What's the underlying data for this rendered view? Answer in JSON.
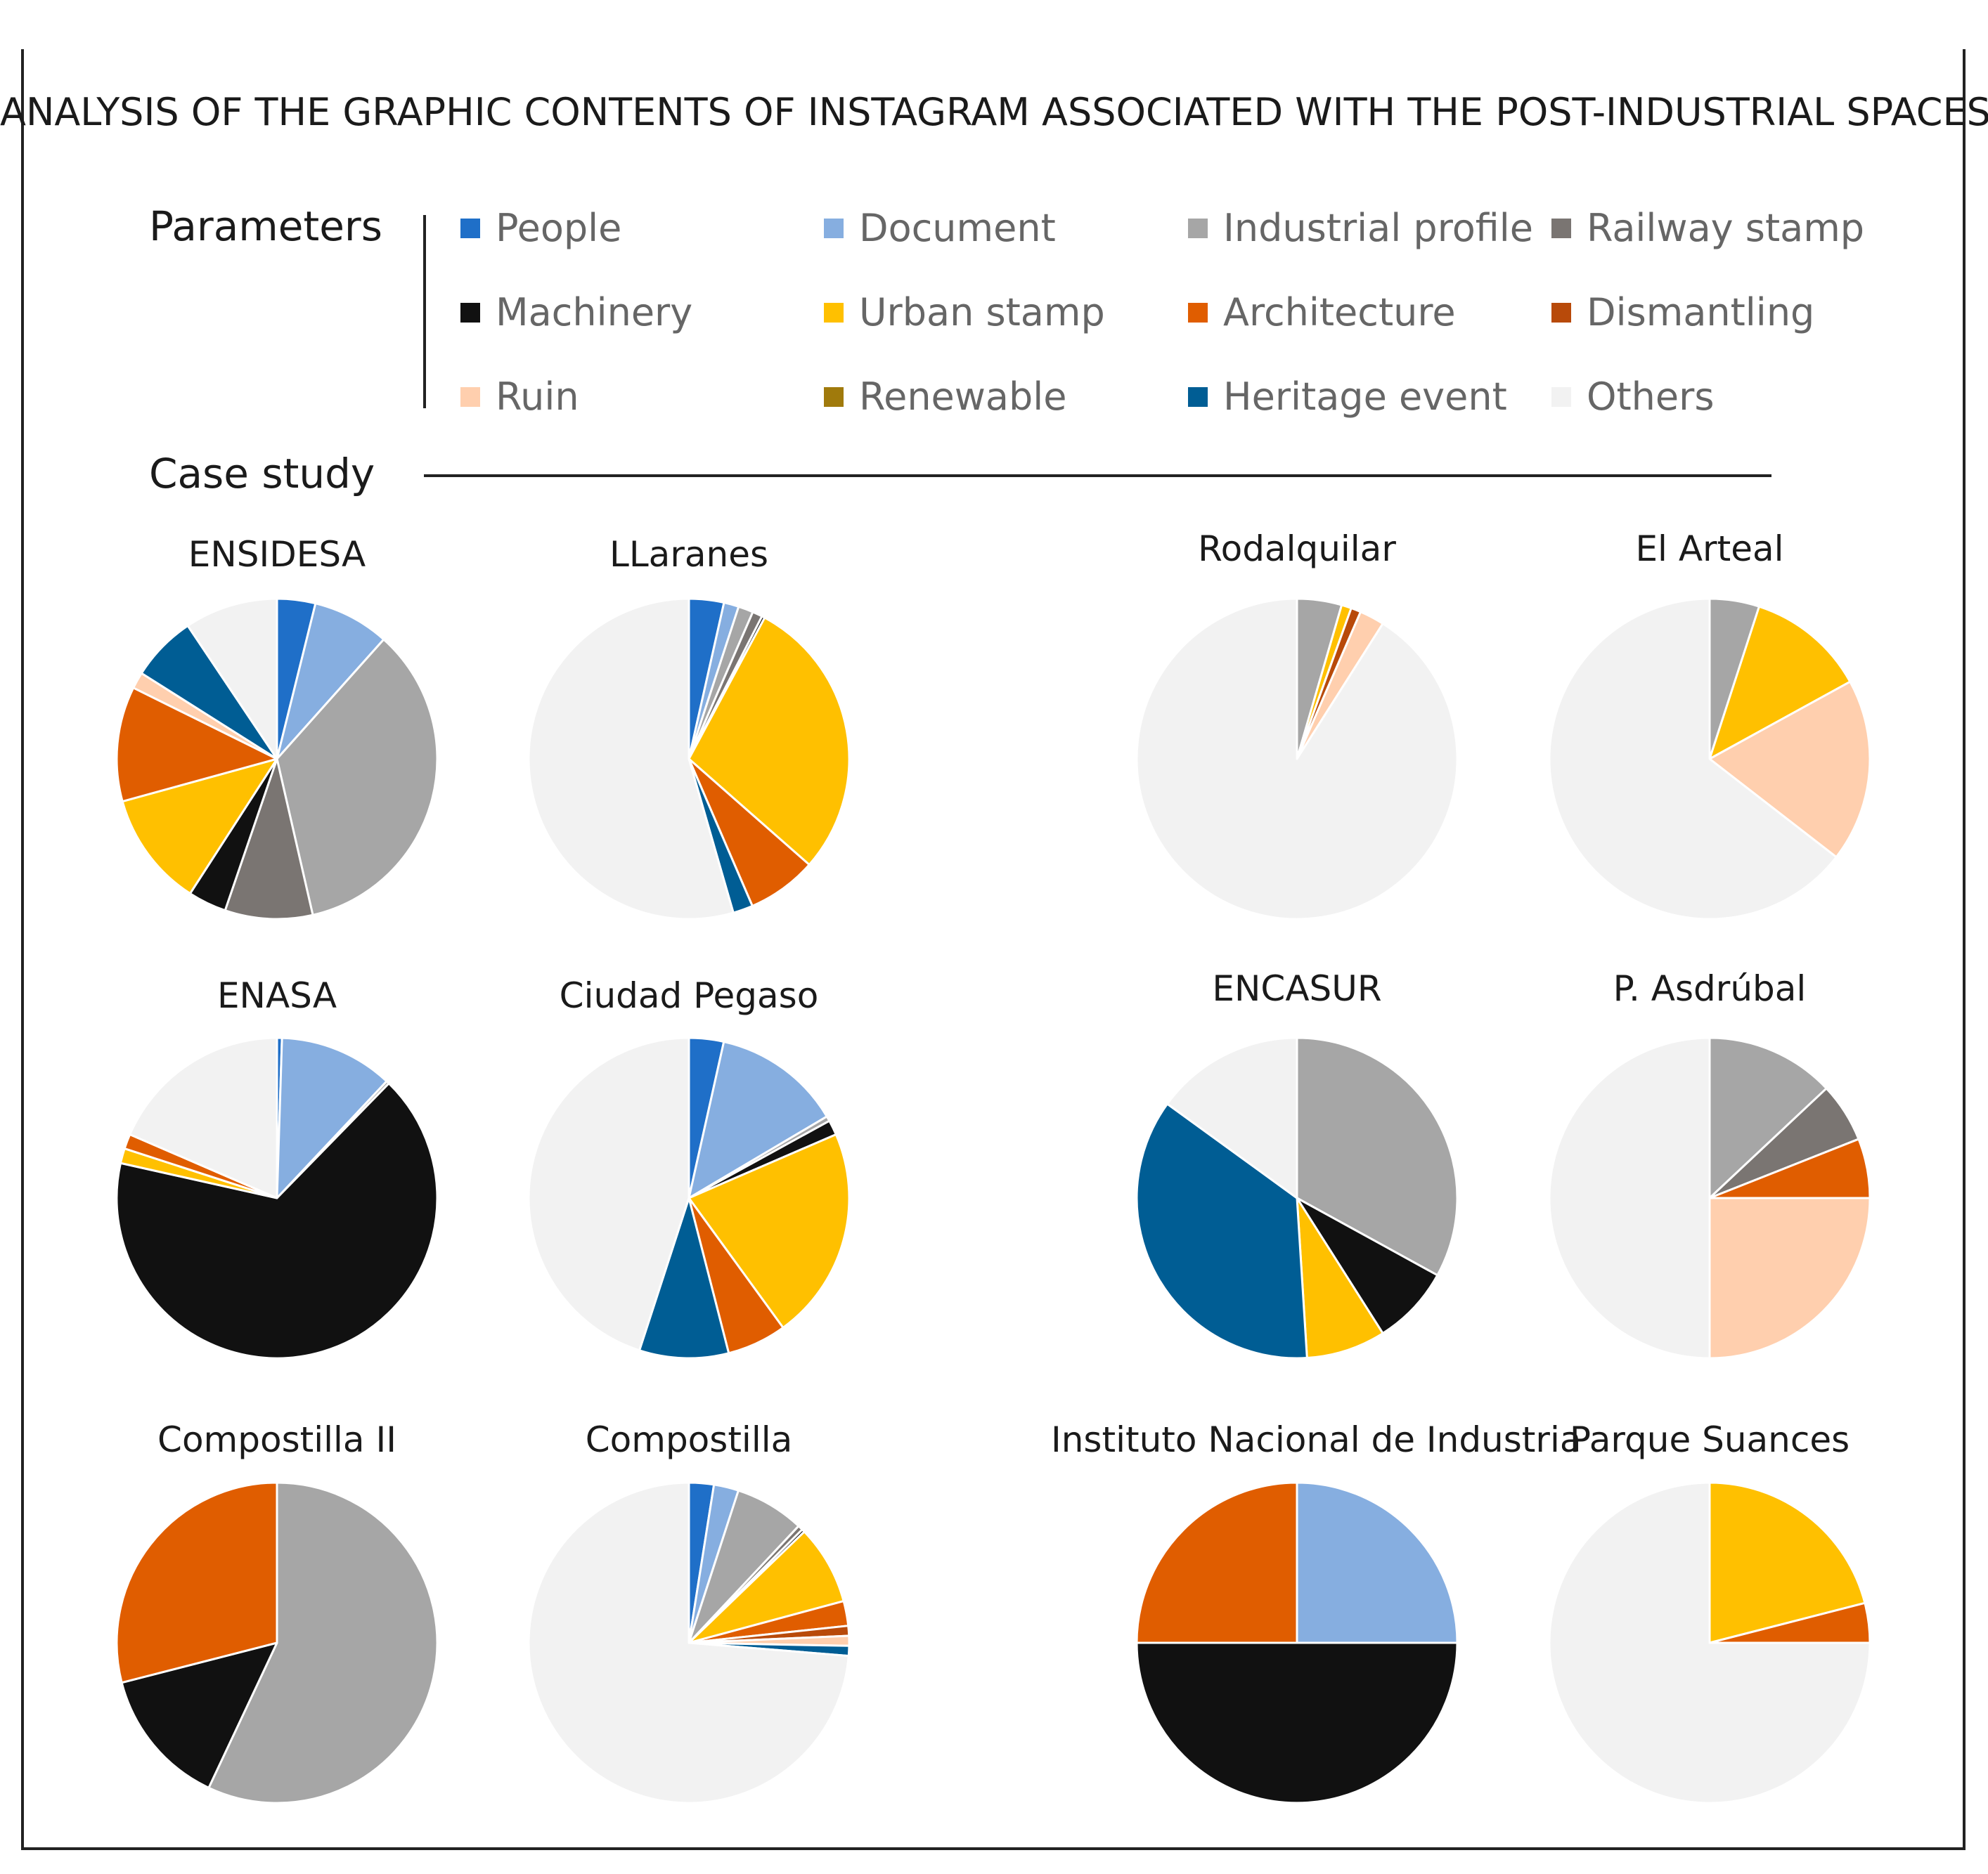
{
  "title": "ANALYSIS OF THE GRAPHIC CONTENTS OF INSTAGRAM ASSOCIATED WITH THE POST-INDUSTRIAL SPACES",
  "parameters_label": "Parameters",
  "case_study_label": "Case study",
  "legend": [
    {
      "name": "People",
      "color": "#1f6fc8"
    },
    {
      "name": "Document",
      "color": "#86aee0"
    },
    {
      "name": "Industrial profile",
      "color": "#a6a6a6"
    },
    {
      "name": "Railway stamp",
      "color": "#7a7572"
    },
    {
      "name": "Machinery",
      "color": "#111111"
    },
    {
      "name": "Urban stamp",
      "color": "#ffc000"
    },
    {
      "name": "Architecture",
      "color": "#e05d00"
    },
    {
      "name": "Dismantling",
      "color": "#b84a0a"
    },
    {
      "name": "Ruin",
      "color": "#ffcfae"
    },
    {
      "name": "Renewable",
      "color": "#a07a0c"
    },
    {
      "name": "Heritage event",
      "color": "#005d94"
    },
    {
      "name": "Others",
      "color": "#f2f2f2"
    }
  ],
  "chart_data": [
    {
      "type": "pie",
      "title": "ENSIDESA",
      "labels": [
        "People",
        "Document",
        "Industrial profile",
        "Railway stamp",
        "Machinery",
        "Urban stamp",
        "Architecture",
        "Dismantling",
        "Ruin",
        "Renewable",
        "Heritage event",
        "Others"
      ],
      "values": [
        3.5,
        7,
        31.5,
        8,
        3.5,
        10.5,
        10.5,
        0,
        1.5,
        0,
        6,
        8.5
      ]
    },
    {
      "type": "pie",
      "title": "LLaranes",
      "labels": [
        "People",
        "Document",
        "Industrial profile",
        "Railway stamp",
        "Machinery",
        "Urban stamp",
        "Architecture",
        "Dismantling",
        "Ruin",
        "Renewable",
        "Heritage event",
        "Others"
      ],
      "values": [
        3.5,
        1.5,
        1.5,
        1,
        0.3,
        28.5,
        7,
        0,
        0,
        0,
        2,
        54.2
      ]
    },
    {
      "type": "pie",
      "title": "Rodalquilar",
      "labels": [
        "People",
        "Document",
        "Industrial profile",
        "Railway stamp",
        "Machinery",
        "Urban stamp",
        "Architecture",
        "Dismantling",
        "Ruin",
        "Renewable",
        "Heritage event",
        "Others"
      ],
      "values": [
        0,
        0,
        4.5,
        0,
        0,
        1,
        0,
        1,
        2.5,
        0,
        0,
        91
      ]
    },
    {
      "type": "pie",
      "title": "El Arteal",
      "labels": [
        "People",
        "Document",
        "Industrial profile",
        "Railway stamp",
        "Machinery",
        "Urban stamp",
        "Architecture",
        "Dismantling",
        "Ruin",
        "Renewable",
        "Heritage event",
        "Others"
      ],
      "values": [
        0,
        0,
        5,
        0,
        0,
        12,
        0,
        0,
        18.5,
        0,
        0,
        64.5
      ]
    },
    {
      "type": "pie",
      "title": "ENASA",
      "labels": [
        "People",
        "Document",
        "Industrial profile",
        "Railway stamp",
        "Machinery",
        "Urban stamp",
        "Architecture",
        "Dismantling",
        "Ruin",
        "Renewable",
        "Heritage event",
        "Others"
      ],
      "values": [
        0.5,
        11.5,
        0.3,
        0,
        66.2,
        1.5,
        1.5,
        0,
        0,
        0,
        0,
        18.5
      ]
    },
    {
      "type": "pie",
      "title": "Ciudad Pegaso",
      "labels": [
        "People",
        "Document",
        "Industrial profile",
        "Railway stamp",
        "Machinery",
        "Urban stamp",
        "Architecture",
        "Dismantling",
        "Ruin",
        "Renewable",
        "Heritage event",
        "Others"
      ],
      "values": [
        3.5,
        13,
        0.5,
        0,
        1.5,
        21.5,
        6,
        0,
        0,
        0,
        9,
        45
      ]
    },
    {
      "type": "pie",
      "title": "ENCASUR",
      "labels": [
        "People",
        "Document",
        "Industrial profile",
        "Railway stamp",
        "Machinery",
        "Urban stamp",
        "Architecture",
        "Dismantling",
        "Ruin",
        "Renewable",
        "Heritage event",
        "Others"
      ],
      "values": [
        0,
        0,
        33,
        0,
        8,
        8,
        0,
        0,
        0,
        0,
        36,
        15
      ]
    },
    {
      "type": "pie",
      "title": "P. Asdrúbal",
      "labels": [
        "People",
        "Document",
        "Industrial profile",
        "Railway stamp",
        "Machinery",
        "Urban stamp",
        "Architecture",
        "Dismantling",
        "Ruin",
        "Renewable",
        "Heritage event",
        "Others"
      ],
      "values": [
        0,
        0,
        13,
        6,
        0,
        0,
        6,
        0,
        25,
        0,
        0,
        50
      ]
    },
    {
      "type": "pie",
      "title": "Compostilla II",
      "labels": [
        "People",
        "Document",
        "Industrial profile",
        "Railway stamp",
        "Machinery",
        "Urban stamp",
        "Architecture",
        "Dismantling",
        "Ruin",
        "Renewable",
        "Heritage event",
        "Others"
      ],
      "values": [
        0,
        0,
        57,
        0,
        14,
        0,
        29,
        0,
        0,
        0,
        0,
        0
      ]
    },
    {
      "type": "pie",
      "title": "Compostilla",
      "labels": [
        "People",
        "Document",
        "Industrial profile",
        "Railway stamp",
        "Machinery",
        "Urban stamp",
        "Architecture",
        "Dismantling",
        "Ruin",
        "Renewable",
        "Heritage event",
        "Others"
      ],
      "values": [
        2.5,
        2.5,
        7,
        0.5,
        0.3,
        8,
        2.5,
        1,
        1,
        0,
        1,
        73.7
      ]
    },
    {
      "type": "pie",
      "title": "Instituto Nacional de Industria",
      "labels": [
        "People",
        "Document",
        "Industrial profile",
        "Railway stamp",
        "Machinery",
        "Urban stamp",
        "Architecture",
        "Dismantling",
        "Ruin",
        "Renewable",
        "Heritage event",
        "Others"
      ],
      "values": [
        0,
        25,
        0,
        0,
        50,
        0,
        25,
        0,
        0,
        0,
        0,
        0
      ]
    },
    {
      "type": "pie",
      "title": "Parque Suances",
      "labels": [
        "People",
        "Document",
        "Industrial profile",
        "Railway stamp",
        "Machinery",
        "Urban stamp",
        "Architecture",
        "Dismantling",
        "Ruin",
        "Renewable",
        "Heritage event",
        "Others"
      ],
      "values": [
        0,
        0,
        0,
        0,
        0,
        21,
        4,
        0,
        0,
        0,
        0,
        75
      ]
    }
  ]
}
